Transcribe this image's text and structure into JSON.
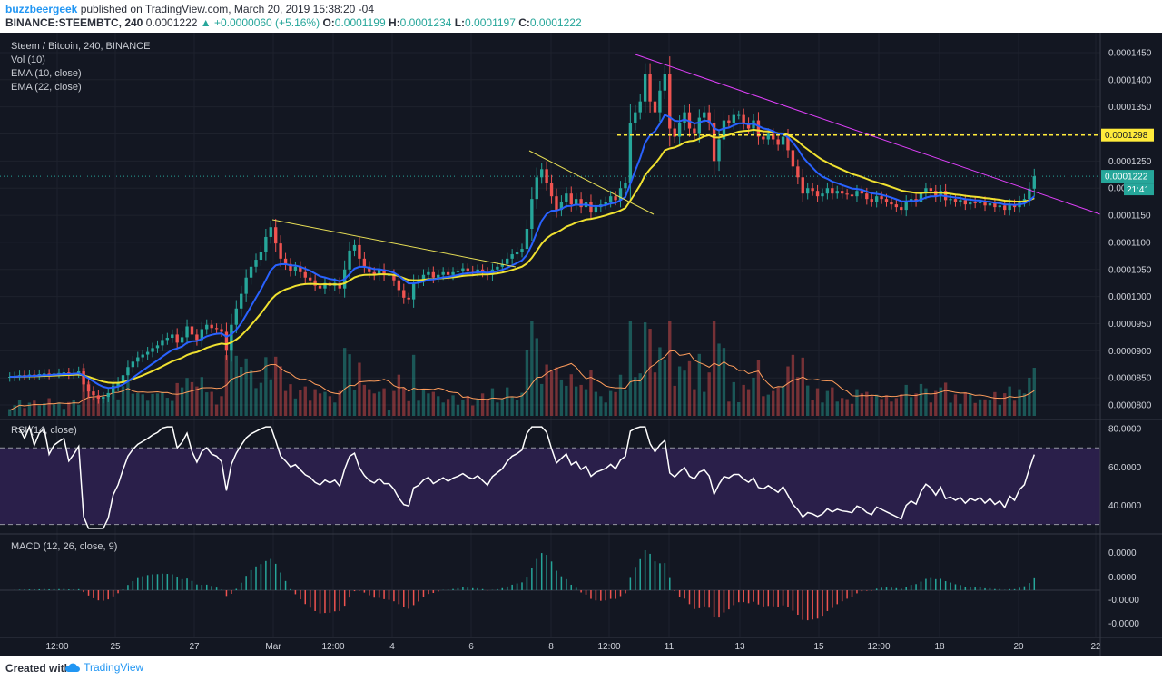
{
  "header": {
    "author": "buzzbeergeek",
    "published_text": "published on TradingView.com, March 20, 2019 15:38:20 -04",
    "symbol": "BINANCE:STEEMBTC, 240",
    "last": "0.0001222",
    "change": "▲ +0.0000060 (+5.16%)",
    "o_label": "O:",
    "o_value": "0.0001199",
    "h_label": "H:",
    "h_value": "0.0001234",
    "l_label": "L:",
    "l_value": "0.0001197",
    "c_label": "C:",
    "c_value": "0.0001222"
  },
  "footer": {
    "created_with": "Created with",
    "brand": "TradingView"
  },
  "colors": {
    "up": "#26a69a",
    "down": "#ef5350",
    "ema10": "#2962ff",
    "ema22": "#f0e130",
    "rsi": "#ffffff",
    "trend": "#e040fb",
    "level": "#ffeb3b",
    "vol_ma": "#ff9d5c"
  },
  "chart_data": {
    "type": "candlestick",
    "legend": {
      "title": "Steem / Bitcoin, 240, BINANCE",
      "vol": "Vol (10)",
      "ema10": "EMA (10, close)",
      "ema22": "EMA (22, close)",
      "rsi": "RSI (14, close)",
      "macd": "MACD (12, 26, close, 9)"
    },
    "x_labels": [
      "12:00",
      "25",
      "27",
      "Mar",
      "12:00",
      "4",
      "6",
      "8",
      "12:00",
      "11",
      "13",
      "15",
      "12:00",
      "18",
      "20",
      "22"
    ],
    "price_axis": [
      "0.0001450",
      "0.0001400",
      "0.0001350",
      "0.0001300",
      "0.0001250",
      "0.0001200",
      "0.0001150",
      "0.0001100",
      "0.0001050",
      "0.0001000",
      "0.0000950",
      "0.0000900",
      "0.0000850",
      "0.0000800"
    ],
    "price_range": [
      7.8e-05,
      0.000147
    ],
    "level_label": "0.0001298",
    "level_value": 0.0001298,
    "last_label": "0.0001222",
    "countdown": "21:41",
    "rsi_axis": [
      "80.0000",
      "60.0000",
      "40.0000"
    ],
    "rsi_range": [
      27,
      82
    ],
    "rsi_bands": [
      70,
      30
    ],
    "macd_axis": [
      "0.0000",
      "0.0000",
      "-0.0000",
      "-0.0000"
    ],
    "close": [
      8.52e-05,
      8.53e-05,
      8.55e-05,
      8.54e-05,
      8.56e-05,
      8.55e-05,
      8.57e-05,
      8.58e-05,
      8.56e-05,
      8.58e-05,
      8.59e-05,
      8.6e-05,
      8.57e-05,
      8.59e-05,
      8.62e-05,
      8.38e-05,
      8.25e-05,
      8.18e-05,
      8.12e-05,
      8.15e-05,
      8.22e-05,
      8.35e-05,
      8.42e-05,
      8.55e-05,
      8.7e-05,
      8.8e-05,
      8.88e-05,
      8.93e-05,
      8.98e-05,
      9.05e-05,
      9.1e-05,
      9.2e-05,
      9.24e-05,
      9.3e-05,
      9.15e-05,
      9.25e-05,
      9.45e-05,
      9.3e-05,
      9.2e-05,
      9.4e-05,
      9.48e-05,
      9.42e-05,
      9.4e-05,
      9.35e-05,
      9e-05,
      9.48e-05,
      9.78e-05,
      0.0001005,
      0.0001035,
      0.0001055,
      0.0001068,
      0.0001082,
      0.000111,
      0.0001128,
      0.0001098,
      0.000107,
      0.000106,
      0.0001048,
      0.0001055,
      0.0001045,
      0.0001035,
      0.000103,
      0.000102,
      0.0001015,
      0.0001025,
      0.000102,
      0.0001025,
      0.0001015,
      0.000105,
      0.0001085,
      0.0001095,
      0.000107,
      0.0001055,
      0.0001045,
      0.000104,
      0.000105,
      0.000104,
      0.000104,
      0.000103,
      0.0001012,
      9.98e-05,
      9.95e-05,
      0.0001025,
      0.000103,
      0.000104,
      0.0001045,
      0.0001035,
      0.000104,
      0.0001045,
      0.000104,
      0.0001045,
      0.0001048,
      0.0001052,
      0.0001048,
      0.0001046,
      0.000105,
      0.0001045,
      0.000104,
      0.000105,
      0.0001055,
      0.000106,
      0.000107,
      0.0001078,
      0.0001082,
      0.0001088,
      0.0001125,
      0.000118,
      0.000122,
      0.0001235,
      0.000121,
      0.0001185,
      0.000116,
      0.0001175,
      0.000119,
      0.000117,
      0.000118,
      0.0001165,
      0.0001175,
      0.0001155,
      0.0001165,
      0.000117,
      0.0001175,
      0.0001185,
      0.0001178,
      0.00012,
      0.000121,
      0.000132,
      0.000134,
      0.000136,
      0.000141,
      0.000136,
      0.000134,
      0.000138,
      0.000141,
      0.000131,
      0.0001295,
      0.000132,
      0.000134,
      0.000131,
      0.00013,
      0.000133,
      0.000134,
      0.000132,
      0.000125,
      0.000129,
      0.0001325,
      0.000132,
      0.0001335,
      0.0001335,
      0.000132,
      0.000131,
      0.0001325,
      0.0001295,
      0.000129,
      0.00013,
      0.000129,
      0.000128,
      0.0001295,
      0.000127,
      0.000124,
      0.000122,
      0.000119,
      0.00012,
      0.0001195,
      0.0001185,
      0.000119,
      0.00012,
      0.000119,
      0.0001195,
      0.000119,
      0.0001188,
      0.0001185,
      0.0001195,
      0.000119,
      0.000118,
      0.0001175,
      0.0001185,
      0.000118,
      0.0001175,
      0.000117,
      0.0001165,
      0.000116,
      0.0001175,
      0.000118,
      0.0001175,
      0.000119,
      0.00012,
      0.0001195,
      0.0001185,
      0.0001195,
      0.0001178,
      0.000118,
      0.0001175,
      0.0001178,
      0.000117,
      0.0001175,
      0.0001172,
      0.0001175,
      0.0001168,
      0.0001172,
      0.0001165,
      0.0001168,
      0.000116,
      0.000117,
      0.0001165,
      0.0001175,
      0.000118,
      0.0001199,
      0.0001222
    ]
  }
}
